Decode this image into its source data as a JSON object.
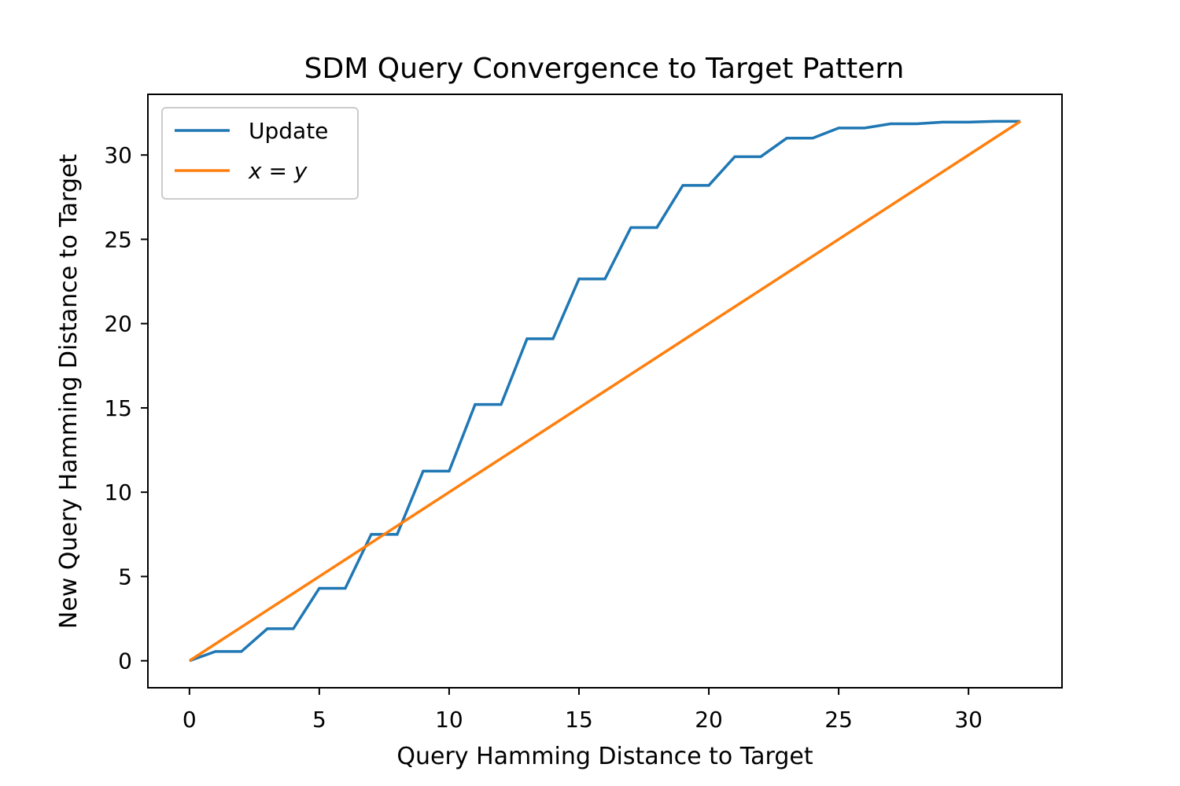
{
  "chart_data": {
    "type": "line",
    "title": "SDM Query Convergence to Target Pattern",
    "xlabel": "Query Hamming Distance to Target",
    "ylabel": "New Query Hamming Distance to Target",
    "xlim": [
      -1.6,
      33.6
    ],
    "ylim": [
      -1.6,
      33.6
    ],
    "xticks": [
      0,
      5,
      10,
      15,
      20,
      25,
      30
    ],
    "yticks": [
      0,
      5,
      10,
      15,
      20,
      25,
      30
    ],
    "grid": false,
    "legend_position": "upper-left",
    "x": [
      0,
      1,
      2,
      3,
      4,
      5,
      6,
      7,
      8,
      9,
      10,
      11,
      12,
      13,
      14,
      15,
      16,
      17,
      18,
      19,
      20,
      21,
      22,
      23,
      24,
      25,
      26,
      27,
      28,
      29,
      30,
      31,
      32
    ],
    "series": [
      {
        "name": "Update",
        "color": "#1f77b4",
        "values": [
          0,
          0.55,
          0.55,
          1.9,
          1.9,
          4.3,
          4.3,
          7.5,
          7.5,
          11.25,
          11.25,
          15.2,
          15.2,
          19.1,
          19.1,
          22.65,
          22.65,
          25.7,
          25.7,
          28.2,
          28.2,
          29.9,
          29.9,
          31.0,
          31.0,
          31.6,
          31.6,
          31.85,
          31.85,
          31.95,
          31.95,
          32.0,
          32.0
        ]
      },
      {
        "name": "x = y",
        "color": "#ff7f0e",
        "values": [
          0,
          1,
          2,
          3,
          4,
          5,
          6,
          7,
          8,
          9,
          10,
          11,
          12,
          13,
          14,
          15,
          16,
          17,
          18,
          19,
          20,
          21,
          22,
          23,
          24,
          25,
          26,
          27,
          28,
          29,
          30,
          31,
          32
        ]
      }
    ]
  },
  "legend": {
    "update_label": "Update",
    "xy_x": "x",
    "xy_eq": " = ",
    "xy_y": "y"
  }
}
